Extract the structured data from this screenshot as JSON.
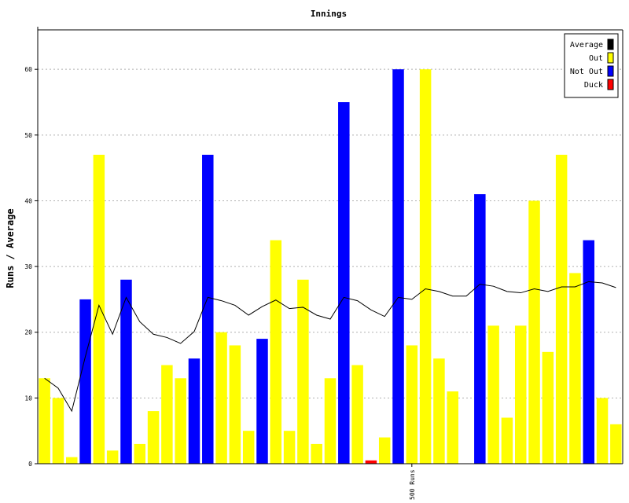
{
  "chart_data": {
    "type": "bar",
    "title": "Innings",
    "xlabel": "",
    "ylabel": "Runs / Average",
    "ylim": [
      0,
      66
    ],
    "yticks": [
      0,
      10,
      20,
      30,
      40,
      50,
      60
    ],
    "grid": true,
    "legend_position": "top-right",
    "legend": [
      {
        "label": "Average",
        "color": "#000000"
      },
      {
        "label": "Out",
        "color": "#ffff00"
      },
      {
        "label": "Not Out",
        "color": "#0000ff"
      },
      {
        "label": "Duck",
        "color": "#ff0000"
      }
    ],
    "innings": [
      {
        "runs": 13,
        "status": "Out"
      },
      {
        "runs": 10,
        "status": "Out"
      },
      {
        "runs": 1,
        "status": "Out"
      },
      {
        "runs": 25,
        "status": "Not Out"
      },
      {
        "runs": 47,
        "status": "Out"
      },
      {
        "runs": 2,
        "status": "Out"
      },
      {
        "runs": 28,
        "status": "Not Out"
      },
      {
        "runs": 3,
        "status": "Out"
      },
      {
        "runs": 8,
        "status": "Out"
      },
      {
        "runs": 15,
        "status": "Out"
      },
      {
        "runs": 13,
        "status": "Out"
      },
      {
        "runs": 16,
        "status": "Not Out"
      },
      {
        "runs": 47,
        "status": "Not Out"
      },
      {
        "runs": 20,
        "status": "Out"
      },
      {
        "runs": 18,
        "status": "Out"
      },
      {
        "runs": 5,
        "status": "Out"
      },
      {
        "runs": 19,
        "status": "Not Out"
      },
      {
        "runs": 34,
        "status": "Out"
      },
      {
        "runs": 5,
        "status": "Out"
      },
      {
        "runs": 28,
        "status": "Out"
      },
      {
        "runs": 3,
        "status": "Out"
      },
      {
        "runs": 13,
        "status": "Out"
      },
      {
        "runs": 55,
        "status": "Not Out"
      },
      {
        "runs": 15,
        "status": "Out"
      },
      {
        "runs": 0.5,
        "status": "Duck"
      },
      {
        "runs": 4,
        "status": "Out"
      },
      {
        "runs": 60,
        "status": "Not Out"
      },
      {
        "runs": 18,
        "status": "Out"
      },
      {
        "runs": 60,
        "status": "Out"
      },
      {
        "runs": 16,
        "status": "Out"
      },
      {
        "runs": 11,
        "status": "Out"
      },
      {
        "runs": 0,
        "status": "Out"
      },
      {
        "runs": 41,
        "status": "Not Out"
      },
      {
        "runs": 21,
        "status": "Out"
      },
      {
        "runs": 7,
        "status": "Out"
      },
      {
        "runs": 21,
        "status": "Out"
      },
      {
        "runs": 40,
        "status": "Out"
      },
      {
        "runs": 17,
        "status": "Out"
      },
      {
        "runs": 47,
        "status": "Out"
      },
      {
        "runs": 29,
        "status": "Out"
      },
      {
        "runs": 34,
        "status": "Not Out"
      },
      {
        "runs": 10,
        "status": "Out"
      },
      {
        "runs": 6,
        "status": "Out"
      }
    ],
    "average": [
      13,
      11.5,
      8,
      16.3,
      24.1,
      19.7,
      25.3,
      21.6,
      19.7,
      19.2,
      18.3,
      20.1,
      25.3,
      24.8,
      24.1,
      22.6,
      23.9,
      24.9,
      23.6,
      23.8,
      22.6,
      22,
      25.3,
      24.8,
      23.4,
      22.4,
      25.3,
      25,
      26.6,
      26.2,
      25.5,
      25.5,
      27.3,
      27,
      26.2,
      26,
      26.6,
      26.2,
      26.9,
      26.9,
      27.7,
      27.5,
      26.8
    ],
    "annotations": [
      {
        "text": "500 Runs",
        "at_innings": 27
      }
    ]
  }
}
